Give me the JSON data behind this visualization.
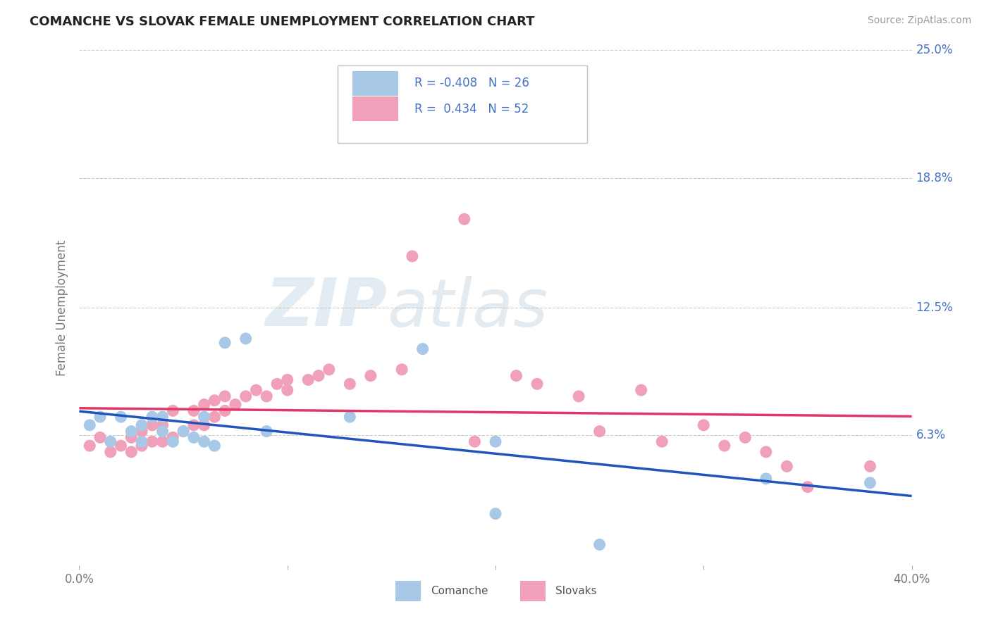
{
  "title": "COMANCHE VS SLOVAK FEMALE UNEMPLOYMENT CORRELATION CHART",
  "source": "Source: ZipAtlas.com",
  "ylabel": "Female Unemployment",
  "xlim": [
    0.0,
    0.4
  ],
  "ylim": [
    0.0,
    0.25
  ],
  "ytick_labels": [
    "6.3%",
    "12.5%",
    "18.8%",
    "25.0%"
  ],
  "ytick_values": [
    0.063,
    0.125,
    0.188,
    0.25
  ],
  "background_color": "#ffffff",
  "grid_color": "#cccccc",
  "comanche_color": "#a8c8e8",
  "slovak_color": "#f0a0b8",
  "comanche_line_color": "#2255bb",
  "slovak_line_color": "#e03868",
  "label_color": "#4472c4",
  "legend_R_comanche": "-0.408",
  "legend_N_comanche": "26",
  "legend_R_slovak": "0.434",
  "legend_N_slovak": "52",
  "comanche_x": [
    0.005,
    0.01,
    0.015,
    0.02,
    0.025,
    0.03,
    0.03,
    0.035,
    0.04,
    0.04,
    0.045,
    0.05,
    0.055,
    0.06,
    0.06,
    0.065,
    0.07,
    0.08,
    0.09,
    0.13,
    0.165,
    0.2,
    0.25,
    0.2,
    0.33,
    0.38
  ],
  "comanche_y": [
    0.068,
    0.072,
    0.06,
    0.072,
    0.065,
    0.068,
    0.06,
    0.072,
    0.065,
    0.072,
    0.06,
    0.065,
    0.062,
    0.06,
    0.072,
    0.058,
    0.108,
    0.11,
    0.065,
    0.072,
    0.105,
    0.025,
    0.01,
    0.06,
    0.042,
    0.04
  ],
  "slovak_x": [
    0.005,
    0.01,
    0.015,
    0.02,
    0.025,
    0.025,
    0.03,
    0.03,
    0.035,
    0.035,
    0.04,
    0.04,
    0.045,
    0.045,
    0.05,
    0.055,
    0.055,
    0.06,
    0.06,
    0.065,
    0.065,
    0.07,
    0.07,
    0.075,
    0.08,
    0.085,
    0.09,
    0.095,
    0.1,
    0.1,
    0.11,
    0.115,
    0.12,
    0.13,
    0.14,
    0.155,
    0.16,
    0.185,
    0.19,
    0.21,
    0.22,
    0.24,
    0.25,
    0.27,
    0.28,
    0.3,
    0.31,
    0.32,
    0.33,
    0.34,
    0.35,
    0.38
  ],
  "slovak_y": [
    0.058,
    0.062,
    0.055,
    0.058,
    0.055,
    0.062,
    0.058,
    0.065,
    0.06,
    0.068,
    0.06,
    0.068,
    0.062,
    0.075,
    0.065,
    0.068,
    0.075,
    0.068,
    0.078,
    0.072,
    0.08,
    0.075,
    0.082,
    0.078,
    0.082,
    0.085,
    0.082,
    0.088,
    0.085,
    0.09,
    0.09,
    0.092,
    0.095,
    0.088,
    0.092,
    0.095,
    0.15,
    0.168,
    0.06,
    0.092,
    0.088,
    0.082,
    0.065,
    0.085,
    0.06,
    0.068,
    0.058,
    0.062,
    0.055,
    0.048,
    0.038,
    0.048
  ]
}
